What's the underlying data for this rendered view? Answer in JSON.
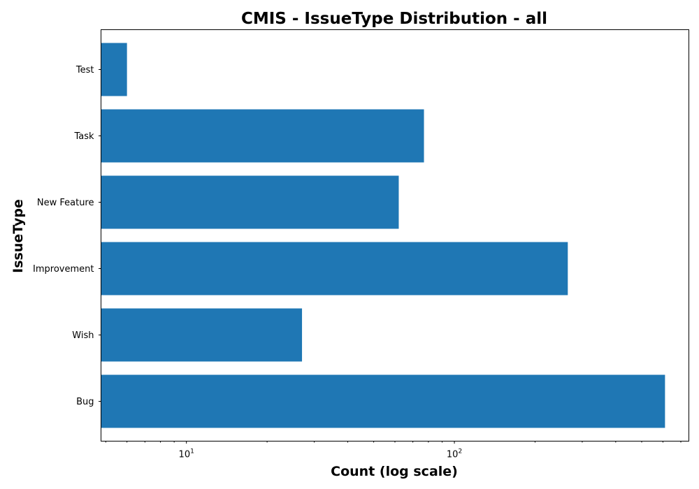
{
  "chart_data": {
    "type": "bar",
    "orientation": "horizontal",
    "title": "CMIS - IssueType Distribution - all",
    "xlabel": "Count (log scale)",
    "ylabel": "IssueType",
    "x_scale": "log",
    "xlim": [
      4.8,
      750
    ],
    "x_major_ticks": [
      {
        "value": 10,
        "base": "10",
        "exponent": "1"
      },
      {
        "value": 100,
        "base": "10",
        "exponent": "2"
      }
    ],
    "x_minor_ticks": [
      5,
      6,
      7,
      8,
      9,
      20,
      30,
      40,
      50,
      60,
      70,
      80,
      90,
      200,
      300,
      400,
      500,
      600,
      700
    ],
    "categories": [
      "Bug",
      "Wish",
      "Improvement",
      "New Feature",
      "Task",
      "Test"
    ],
    "values": [
      611,
      27,
      265,
      62,
      77,
      6
    ],
    "bar_color": "#1f77b4",
    "grid": false,
    "legend": "none"
  }
}
